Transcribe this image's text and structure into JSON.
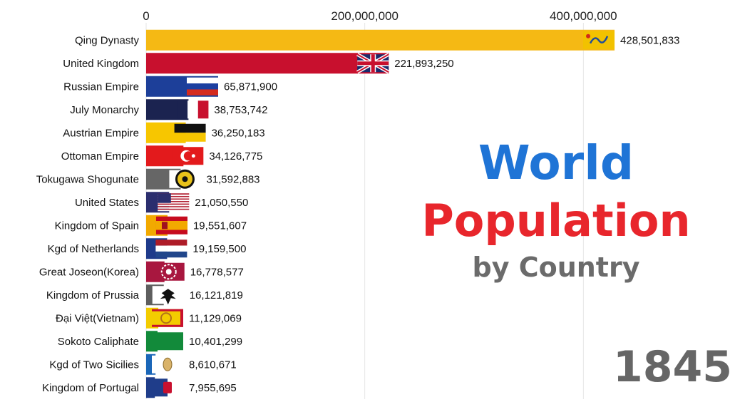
{
  "chart_data": {
    "type": "bar",
    "orientation": "horizontal",
    "title_line1": "World",
    "title_line2": "Population",
    "title_line3": "by Country",
    "year": "1845",
    "xlim": [
      0,
      450000000
    ],
    "xticks": [
      0,
      200000000,
      400000000
    ],
    "xtick_labels": [
      "0",
      "200,000,000",
      "400,000,000"
    ],
    "grid": true,
    "categories": [
      "Qing Dynasty",
      "United Kingdom",
      "Russian Empire",
      "July Monarchy",
      "Austrian Empire",
      "Ottoman Empire",
      "Tokugawa Shogunate",
      "United States",
      "Kingdom of Spain",
      "Kgd of Netherlands",
      "Great Joseon(Korea)",
      "Kingdom of Prussia",
      "Đại Việt(Vietnam)",
      "Sokoto Caliphate",
      "Kgd of Two Sicilies",
      "Kingdom of Portugal"
    ],
    "values": [
      428501833,
      221893250,
      65871900,
      38753742,
      36250183,
      34126775,
      31592883,
      21050550,
      19551607,
      19159500,
      16778577,
      16121819,
      11129069,
      10401299,
      8610671,
      7955695
    ],
    "value_labels": [
      "428,501,833",
      "221,893,250",
      "65,871,900",
      "38,753,742",
      "36,250,183",
      "34,126,775",
      "31,592,883",
      "21,050,550",
      "19,551,607",
      "19,159,500",
      "16,778,577",
      "16,121,819",
      "11,129,069",
      "10,401,299",
      "8,610,671",
      "7,955,695"
    ],
    "colors": [
      "#f5b914",
      "#c8102e",
      "#1d3f99",
      "#1b2350",
      "#f7c600",
      "#e31a1c",
      "#666666",
      "#2b2e6e",
      "#f2a900",
      "#1e3a8a",
      "#a8173f",
      "#5e5e5e",
      "#f3cc00",
      "#128a3a",
      "#1a66b8",
      "#1f3d8a"
    ],
    "flags": [
      "qing-dragon-flag-icon",
      "union-jack-flag-icon",
      "russia-flag-icon",
      "france-tricolor-flag-icon",
      "austria-flag-icon",
      "ottoman-flag-icon",
      "tokugawa-mon-icon",
      "usa-flag-icon",
      "spain-flag-icon",
      "netherlands-flag-icon",
      "joseon-flag-icon",
      "prussia-eagle-flag-icon",
      "dai-viet-flag-icon",
      "sokoto-flag-icon",
      "two-sicilies-flag-icon",
      "portugal-flag-icon"
    ]
  }
}
